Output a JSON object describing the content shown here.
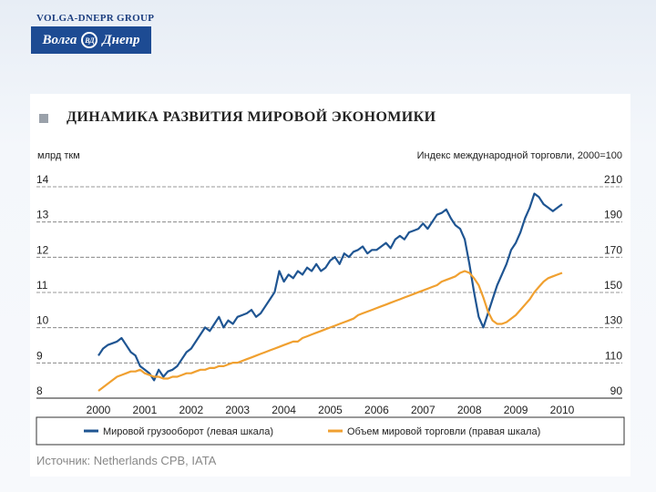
{
  "header": {
    "company_name": "VOLGA-DNEPR GROUP",
    "logo_left": "Волга",
    "logo_emblem": "ВД",
    "logo_right": "Днепр"
  },
  "slide": {
    "title": "ДИНАМИКА РАЗВИТИЯ МИРОВОЙ ЭКОНОМИКИ",
    "source": "Источник: Netherlands CPB, IATA"
  },
  "colors": {
    "freight": "#1f5592",
    "trade": "#f0a030",
    "bullet": "#9aa1aa"
  },
  "chart_data": {
    "type": "line",
    "ylabel_left": "млрд ткм",
    "ylabel_right": "Индекс международной торговли, 2000=100",
    "ylim_left": [
      8,
      14
    ],
    "ylim_right": [
      90,
      210
    ],
    "yticks_left": [
      "8",
      "9",
      "10",
      "11",
      "12",
      "13",
      "14"
    ],
    "yticks_right": [
      "90",
      "110",
      "130",
      "150",
      "170",
      "190",
      "210"
    ],
    "xticks": [
      "2000",
      "2001",
      "2002",
      "2003",
      "2004",
      "2005",
      "2006",
      "2007",
      "2008",
      "2009",
      "2010"
    ],
    "grid": "horizontal dashed",
    "legend_position": "bottom",
    "series": [
      {
        "name": "Мировой грузооборот (левая шкала)",
        "axis": "left",
        "x": [
          2000.0,
          2000.1,
          2000.2,
          2000.3,
          2000.4,
          2000.5,
          2000.6,
          2000.7,
          2000.8,
          2000.9,
          2001.0,
          2001.1,
          2001.2,
          2001.3,
          2001.4,
          2001.5,
          2001.6,
          2001.7,
          2001.8,
          2001.9,
          2002.0,
          2002.1,
          2002.2,
          2002.3,
          2002.4,
          2002.5,
          2002.6,
          2002.7,
          2002.8,
          2002.9,
          2003.0,
          2003.1,
          2003.2,
          2003.3,
          2003.4,
          2003.5,
          2003.6,
          2003.7,
          2003.8,
          2003.9,
          2004.0,
          2004.1,
          2004.2,
          2004.3,
          2004.4,
          2004.5,
          2004.6,
          2004.7,
          2004.8,
          2004.9,
          2005.0,
          2005.1,
          2005.2,
          2005.3,
          2005.4,
          2005.5,
          2005.6,
          2005.7,
          2005.8,
          2005.9,
          2006.0,
          2006.1,
          2006.2,
          2006.3,
          2006.4,
          2006.5,
          2006.6,
          2006.7,
          2006.8,
          2006.9,
          2007.0,
          2007.1,
          2007.2,
          2007.3,
          2007.4,
          2007.5,
          2007.6,
          2007.7,
          2007.8,
          2007.9,
          2008.0,
          2008.1,
          2008.2,
          2008.3,
          2008.4,
          2008.5,
          2008.6,
          2008.7,
          2008.8,
          2008.9,
          2009.0,
          2009.1,
          2009.2,
          2009.3,
          2009.4,
          2009.5,
          2009.6,
          2009.7,
          2009.8,
          2009.9,
          2010.0
        ],
        "y": [
          9.0,
          9.2,
          9.3,
          9.35,
          9.4,
          9.5,
          9.3,
          9.1,
          9.0,
          8.7,
          8.6,
          8.5,
          8.3,
          8.6,
          8.4,
          8.55,
          8.6,
          8.7,
          8.9,
          9.1,
          9.2,
          9.4,
          9.6,
          9.8,
          9.7,
          9.9,
          10.1,
          9.8,
          10.0,
          9.9,
          10.1,
          10.15,
          10.2,
          10.3,
          10.1,
          10.2,
          10.4,
          10.6,
          10.8,
          11.4,
          11.1,
          11.3,
          11.2,
          11.4,
          11.3,
          11.5,
          11.4,
          11.6,
          11.4,
          11.5,
          11.7,
          11.8,
          11.6,
          11.9,
          11.8,
          11.95,
          12.0,
          12.1,
          11.9,
          12.0,
          12.0,
          12.1,
          12.2,
          12.05,
          12.3,
          12.4,
          12.3,
          12.5,
          12.55,
          12.6,
          12.75,
          12.6,
          12.8,
          13.0,
          13.05,
          13.15,
          12.9,
          12.7,
          12.6,
          12.3,
          11.6,
          10.8,
          10.1,
          9.8,
          10.2,
          10.6,
          11.0,
          11.3,
          11.6,
          12.0,
          12.2,
          12.5,
          12.9,
          13.2,
          13.6,
          13.5,
          13.3,
          13.2,
          13.1,
          13.2,
          13.3
        ]
      },
      {
        "name": "Объем мировой торговли (правая шкала)",
        "axis": "right",
        "x": [
          2000.0,
          2000.1,
          2000.2,
          2000.3,
          2000.4,
          2000.5,
          2000.6,
          2000.7,
          2000.8,
          2000.9,
          2001.0,
          2001.1,
          2001.2,
          2001.3,
          2001.4,
          2001.5,
          2001.6,
          2001.7,
          2001.8,
          2001.9,
          2002.0,
          2002.1,
          2002.2,
          2002.3,
          2002.4,
          2002.5,
          2002.6,
          2002.7,
          2002.8,
          2002.9,
          2003.0,
          2003.1,
          2003.2,
          2003.3,
          2003.4,
          2003.5,
          2003.6,
          2003.7,
          2003.8,
          2003.9,
          2004.0,
          2004.1,
          2004.2,
          2004.3,
          2004.4,
          2004.5,
          2004.6,
          2004.7,
          2004.8,
          2004.9,
          2005.0,
          2005.1,
          2005.2,
          2005.3,
          2005.4,
          2005.5,
          2005.6,
          2005.7,
          2005.8,
          2005.9,
          2006.0,
          2006.1,
          2006.2,
          2006.3,
          2006.4,
          2006.5,
          2006.6,
          2006.7,
          2006.8,
          2006.9,
          2007.0,
          2007.1,
          2007.2,
          2007.3,
          2007.4,
          2007.5,
          2007.6,
          2007.7,
          2007.8,
          2007.9,
          2008.0,
          2008.1,
          2008.2,
          2008.3,
          2008.4,
          2008.5,
          2008.6,
          2008.7,
          2008.8,
          2008.9,
          2009.0,
          2009.1,
          2009.2,
          2009.3,
          2009.4,
          2009.5,
          2009.6,
          2009.7,
          2009.8,
          2009.9,
          2010.0
        ],
        "y": [
          90,
          92,
          94,
          96,
          98,
          99,
          100,
          101,
          101,
          102,
          100,
          99,
          98,
          98,
          97,
          97,
          98,
          98,
          99,
          100,
          100,
          101,
          102,
          102,
          103,
          103,
          104,
          104,
          105,
          106,
          106,
          107,
          108,
          109,
          110,
          111,
          112,
          113,
          114,
          115,
          116,
          117,
          118,
          118,
          120,
          121,
          122,
          123,
          124,
          125,
          126,
          127,
          128,
          129,
          130,
          131,
          133,
          134,
          135,
          136,
          137,
          138,
          139,
          140,
          141,
          142,
          143,
          144,
          145,
          146,
          147,
          148,
          149,
          150,
          152,
          153,
          154,
          155,
          157,
          158,
          157,
          154,
          150,
          143,
          135,
          130,
          128,
          128,
          129,
          131,
          133,
          136,
          139,
          142,
          146,
          149,
          152,
          154,
          155,
          156,
          157
        ]
      }
    ]
  }
}
